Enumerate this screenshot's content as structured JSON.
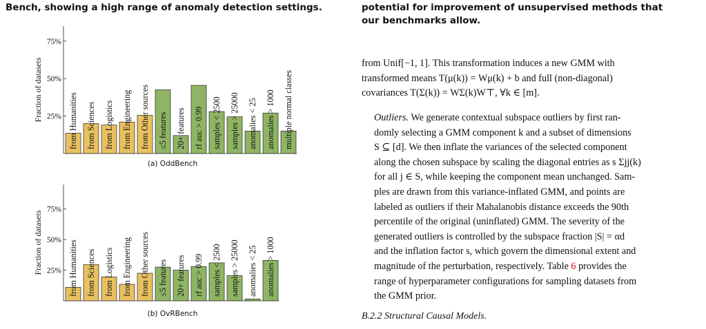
{
  "left_caption": {
    "line1": "Bench, showing a high range of anomaly detection settings."
  },
  "right_caption": {
    "line1": "potential for improvement of unsupervised methods that",
    "line2": "our benchmarks allow."
  },
  "charts": [
    {
      "subcaption": "(a) OddBench"
    },
    {
      "subcaption": "(b) OvRBench"
    }
  ],
  "chart_data": [
    {
      "type": "bar",
      "title": "(a) OddBench",
      "ylabel": "Fraction of datasets",
      "ylim": [
        0,
        0.85
      ],
      "yticks": [
        "25%",
        "50%",
        "75%"
      ],
      "grid": false,
      "colors": {
        "source": "#e8c060",
        "property": "#8fb564",
        "edge": "#222222"
      },
      "categories": [
        "from Humanities",
        "from Sciences",
        "from Logistics",
        "from Engineering",
        "from Other sources",
        "≤5 features",
        "20+ features",
        "rf auc > 0.99",
        "samples < 2500",
        "samples > 25000",
        "anomalies < 25",
        "anomalies > 1000",
        "multiple normal classes"
      ],
      "values": [
        0.135,
        0.2,
        0.19,
        0.21,
        0.255,
        0.425,
        0.12,
        0.455,
        0.28,
        0.245,
        0.15,
        0.27,
        0.15
      ],
      "groups": [
        "source",
        "source",
        "source",
        "source",
        "source",
        "property",
        "property",
        "property",
        "property",
        "property",
        "property",
        "property",
        "property"
      ]
    },
    {
      "type": "bar",
      "title": "(b) OvRBench",
      "ylabel": "Fraction of datasets",
      "ylim": [
        0,
        0.95
      ],
      "yticks": [
        "25%",
        "50%",
        "75%"
      ],
      "grid": false,
      "colors": {
        "source": "#e8c060",
        "property": "#8fb564",
        "edge": "#222222"
      },
      "categories": [
        "from Humanities",
        "from Sciences",
        "from Logistics",
        "from Engineering",
        "from Other sources",
        "≤5 features",
        "20+ features",
        "rf auc > 0.99",
        "samples < 2500",
        "samples > 25000",
        "anomalies < 25",
        "anomalies > 1000"
      ],
      "values": [
        0.11,
        0.295,
        0.195,
        0.135,
        0.225,
        0.275,
        0.25,
        0.28,
        0.31,
        0.205,
        0.015,
        0.33
      ],
      "groups": [
        "source",
        "source",
        "source",
        "source",
        "source",
        "property",
        "property",
        "property",
        "property",
        "property",
        "property",
        "property"
      ]
    }
  ],
  "paragraphs": {
    "p1": [
      "from Unif[−1, 1]. This transformation induces a new GMM with",
      "transformed means T(μ(k)) = Wμ(k) + b and full (non-diagonal)",
      "covariances T(Σ(k)) = WΣ(k)W⊤, ∀k ∈ [m]."
    ],
    "p2_head": "Outliers.",
    "p2_line1_rest": " We generate contextual subspace outliers by first ran-",
    "p2": [
      "domly selecting a GMM component k and a subset of dimensions",
      "S ⊆ [d]. We then inflate the variances of the selected component",
      "along the chosen subspace by scaling the diagonal entries as s Σjj(k)",
      "for all j ∈ S, while keeping the component mean unchanged. Sam-",
      "ples are drawn from this variance-inflated GMM, and points are",
      "labeled as outliers if their Mahalanobis distance exceeds the 90th",
      "percentile of the original (uninflated) GMM. The severity of the",
      "generated outliers is controlled by the subspace fraction |S| = αd",
      "and the inflation factor s, which govern the dimensional extent and"
    ],
    "p2_last_a": "magnitude of the perturbation, respectively. Table ",
    "p2_ref": "6",
    "p2_last_b": " provides the",
    "p2_tail": [
      "range of hyperparameter configurations for sampling datasets from",
      "the GMM prior."
    ]
  },
  "subsection": "B.2.2   Structural Causal Models."
}
